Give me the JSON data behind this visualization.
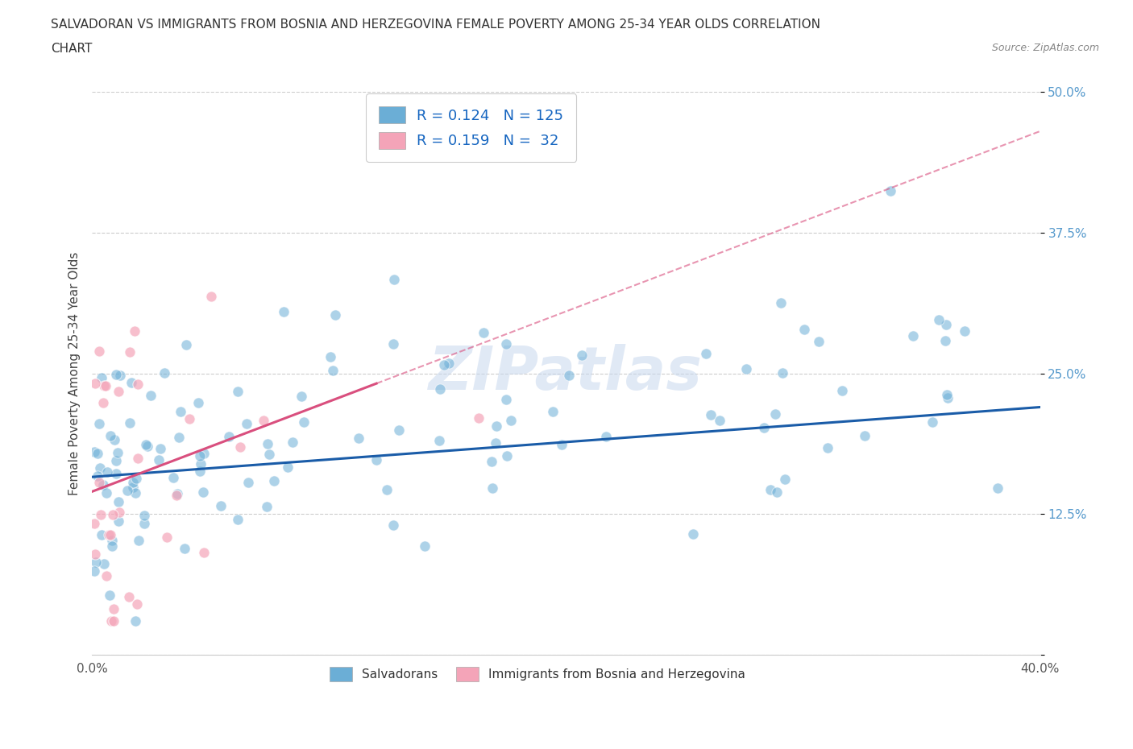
{
  "title_line1": "SALVADORAN VS IMMIGRANTS FROM BOSNIA AND HERZEGOVINA FEMALE POVERTY AMONG 25-34 YEAR OLDS CORRELATION",
  "title_line2": "CHART",
  "source": "Source: ZipAtlas.com",
  "ylabel": "Female Poverty Among 25-34 Year Olds",
  "xlim": [
    0.0,
    0.4
  ],
  "ylim": [
    0.0,
    0.5
  ],
  "yticks": [
    0.0,
    0.125,
    0.25,
    0.375,
    0.5
  ],
  "ytick_labels": [
    "",
    "12.5%",
    "25.0%",
    "37.5%",
    "50.0%"
  ],
  "xticks": [
    0.0,
    0.4
  ],
  "xtick_labels": [
    "0.0%",
    "40.0%"
  ],
  "salvadoran_R": 0.124,
  "salvadoran_N": 125,
  "bosnia_R": 0.159,
  "bosnia_N": 32,
  "salvadoran_color": "#6baed6",
  "bosnia_color": "#f4a4b8",
  "salvadoran_line_color": "#1a5ca8",
  "bosnia_line_color": "#d94f7e",
  "background_color": "#ffffff",
  "watermark": "ZIPatlas",
  "legend_label_color": "#1565C0",
  "tick_color": "#5599cc"
}
